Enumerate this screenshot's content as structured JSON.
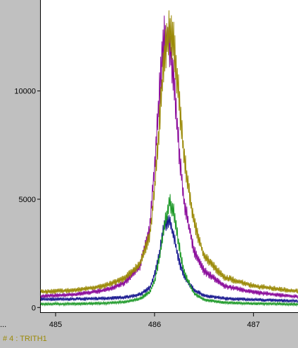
{
  "chart_data": {
    "type": "line",
    "xlim": [
      484.85,
      487.45
    ],
    "ylim": [
      -250,
      14200
    ],
    "x_ticks": [
      485,
      486,
      487
    ],
    "x_tick_labels": [
      "485",
      "486",
      "487"
    ],
    "y_ticks": [
      0,
      5000,
      10000
    ],
    "y_tick_labels": [
      "0",
      "5000",
      "10000"
    ],
    "grid": false,
    "series": [
      {
        "color": "#8b0c9b",
        "x": [
          484.85,
          485.2,
          485.5,
          485.7,
          485.85,
          485.95,
          486.0,
          486.05,
          486.1,
          486.15,
          486.2,
          486.25,
          486.3,
          486.4,
          486.5,
          486.7,
          487.0,
          487.3,
          487.45
        ],
        "y": [
          520,
          600,
          800,
          1150,
          1900,
          3600,
          6500,
          10000,
          12600,
          12300,
          10200,
          7200,
          4800,
          2600,
          1700,
          1000,
          700,
          560,
          500
        ]
      },
      {
        "color": "#9b8a08",
        "x": [
          484.85,
          485.2,
          485.5,
          485.7,
          485.85,
          485.95,
          486.0,
          486.05,
          486.1,
          486.15,
          486.2,
          486.25,
          486.3,
          486.4,
          486.5,
          486.7,
          487.0,
          487.3,
          487.45
        ],
        "y": [
          720,
          800,
          1000,
          1350,
          2000,
          3300,
          5400,
          8600,
          11600,
          12800,
          12000,
          9600,
          6800,
          3900,
          2400,
          1400,
          1000,
          820,
          760
        ]
      },
      {
        "color": "#1a1a90",
        "x": [
          484.85,
          485.2,
          485.5,
          485.7,
          485.85,
          485.95,
          486.0,
          486.05,
          486.1,
          486.15,
          486.2,
          486.25,
          486.3,
          486.4,
          486.5,
          486.7,
          487.0,
          487.3,
          487.45
        ],
        "y": [
          380,
          390,
          420,
          470,
          600,
          900,
          1500,
          2500,
          3900,
          4000,
          3200,
          2100,
          1400,
          800,
          560,
          420,
          360,
          320,
          300
        ]
      },
      {
        "color": "#1f9a2a",
        "x": [
          484.85,
          485.2,
          485.5,
          485.7,
          485.85,
          485.95,
          486.0,
          486.05,
          486.1,
          486.15,
          486.2,
          486.25,
          486.3,
          486.4,
          486.5,
          486.7,
          487.0,
          487.3,
          487.45
        ],
        "y": [
          160,
          170,
          200,
          260,
          400,
          700,
          1200,
          2300,
          3800,
          4900,
          4300,
          2800,
          1600,
          650,
          360,
          230,
          180,
          160,
          150
        ]
      }
    ]
  },
  "footer": {
    "ellipsis": "...",
    "trace_label": "# 4 : TRITH1",
    "trace_color": "#9b8a08"
  }
}
